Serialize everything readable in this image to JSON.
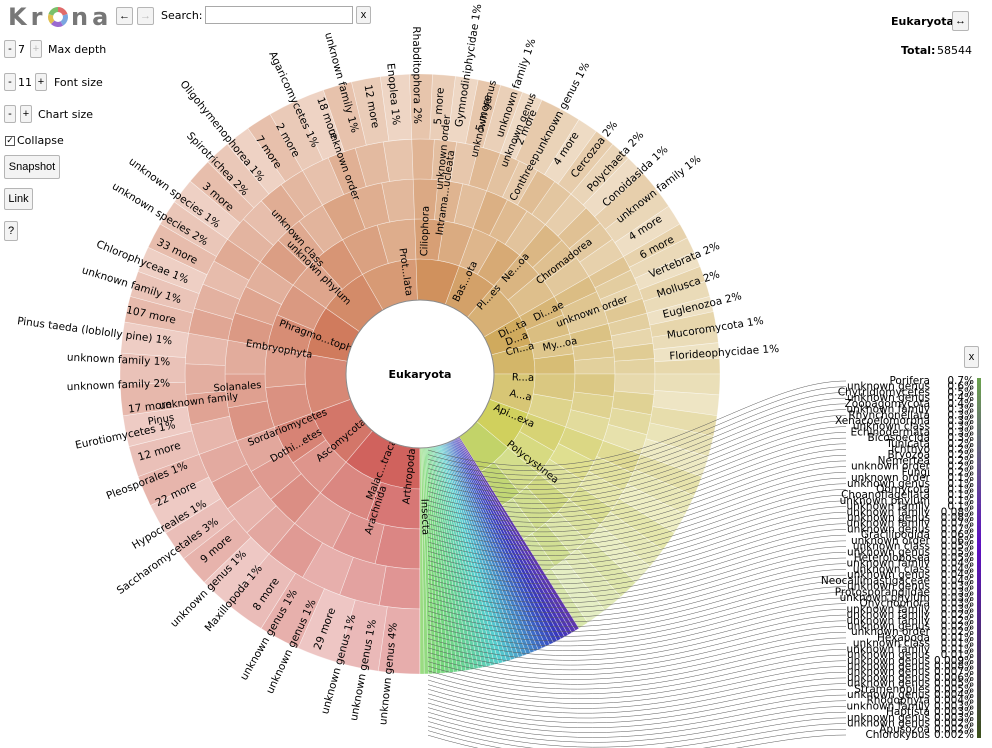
{
  "app": {
    "logo": "Krona"
  },
  "controls": {
    "back_label": "←",
    "forward_label": "→",
    "search_label": "Search:",
    "search_value": "",
    "clear_label": "x",
    "minus_label": "-",
    "plus_label": "+",
    "max_depth_value": "7",
    "max_depth_label": "Max depth",
    "font_size_value": "11",
    "font_size_label": "Font size",
    "chart_size_label": "Chart size",
    "collapse_label": "Collapse",
    "collapse_checked": true,
    "snapshot_label": "Snapshot",
    "link_label": "Link",
    "help_label": "?"
  },
  "details": {
    "name": "Eukaryota",
    "swap_label": "↔",
    "total_label": "Total:",
    "total_value": "58544",
    "close_label": "x"
  },
  "colors": {
    "root_fill": "#ffffff",
    "outline": "#8a8a8a",
    "accent_red": "#d66a6a",
    "accent_orange": "#d49a5e",
    "accent_yellow": "#cfc46a",
    "accent_green": "#8cc55a"
  },
  "chart": {
    "center_label": "Eukaryota",
    "inner_labels": [
      "Arthropoda",
      "Insecta",
      "Malac...traca",
      "Arachnida",
      "Ascomycota",
      "Dothi...etes",
      "Sordariomycetes",
      "Phragmo...tophyta",
      "Embryophyta",
      "Solanales",
      "unknown family",
      "Pinus",
      "unknown phylum",
      "unknown class",
      "unknown order",
      "Prot...lata",
      "Ciliophora",
      "Intrama...ucleata",
      "unknown order",
      "unknown genus",
      "unknown genus",
      "Conthreep",
      "Bas...ota",
      "Pl...es",
      "Ne...oa",
      "Chromadorea",
      "Di...ta",
      "D...a",
      "Cn...a",
      "My...oa",
      "Di...ae",
      "unknown order",
      "R...a",
      "A...a",
      "Api...exa",
      "Polycystinea"
    ],
    "outer_labels": [
      {
        "text": "unknown genus 4%"
      },
      {
        "text": "unknown genus 1%"
      },
      {
        "text": "unknown genus 1%"
      },
      {
        "text": "29 more"
      },
      {
        "text": "unknown genus 1%"
      },
      {
        "text": "unknown genus 1%"
      },
      {
        "text": "8 more"
      },
      {
        "text": "Maxillopoda 1%"
      },
      {
        "text": "unknown genus 1%"
      },
      {
        "text": "9 more"
      },
      {
        "text": "Saccharomycetales 3%"
      },
      {
        "text": "Hypocreales 1%"
      },
      {
        "text": "22 more"
      },
      {
        "text": "Pleosporales 1%"
      },
      {
        "text": "12 more"
      },
      {
        "text": "Eurotiomycetes 1%"
      },
      {
        "text": "17 more"
      },
      {
        "text": "unknown family 2%"
      },
      {
        "text": "unknown family 1%"
      },
      {
        "text": "Pinus taeda (loblolly pine) 1%"
      },
      {
        "text": "107 more"
      },
      {
        "text": "unknown family 1%"
      },
      {
        "text": "Chlorophyceae 1%"
      },
      {
        "text": "33 more"
      },
      {
        "text": "unknown species 2%"
      },
      {
        "text": "unknown species 1%"
      },
      {
        "text": "3 more"
      },
      {
        "text": "Spirotrichea 2%"
      },
      {
        "text": "Oligohymenophorea 1%"
      },
      {
        "text": "7 more"
      },
      {
        "text": "2 more"
      },
      {
        "text": "Agaricomycetes 1%"
      },
      {
        "text": "18 more"
      },
      {
        "text": "unknown family 1%"
      },
      {
        "text": "12 more"
      },
      {
        "text": "Enoplea 1%"
      },
      {
        "text": "Rhabditophora 2%"
      },
      {
        "text": "5 more"
      },
      {
        "text": "Gymnodiniphycidae 1%"
      },
      {
        "text": "5 more"
      },
      {
        "text": "unknown family 1%"
      },
      {
        "text": "2 more"
      },
      {
        "text": "unknown genus 1%"
      },
      {
        "text": "4 more"
      },
      {
        "text": "Cercozoa 2%"
      },
      {
        "text": "Polychaeta 2%"
      },
      {
        "text": "Conoidasida 1%"
      },
      {
        "text": "unknown family 1%"
      },
      {
        "text": "4 more"
      },
      {
        "text": "6 more"
      },
      {
        "text": "Vertebrata 2%"
      },
      {
        "text": "Mollusca 2%"
      },
      {
        "text": "Euglenozoa 2%"
      },
      {
        "text": "Mucoromycota 1%"
      },
      {
        "text": "Florideophycidae 1%"
      }
    ]
  },
  "legend": {
    "items": [
      {
        "name": "Porifera",
        "pct": "0.7%",
        "color": "#6a9f4f"
      },
      {
        "name": "unknown genus",
        "pct": "0.6%",
        "color": "#6a9a52"
      },
      {
        "name": "Chytridiomycetes",
        "pct": "0.5%",
        "color": "#6a9556"
      },
      {
        "name": "unknown genus",
        "pct": "0.4%",
        "color": "#6a905a"
      },
      {
        "name": "Zoopagomycota",
        "pct": "0.4%",
        "color": "#698b5e"
      },
      {
        "name": "unknown family",
        "pct": "0.3%",
        "color": "#698662"
      },
      {
        "name": "Rhynchonellata",
        "pct": "0.3%",
        "color": "#688166"
      },
      {
        "name": "Xenacoelomorpha",
        "pct": "0.3%",
        "color": "#687c6a"
      },
      {
        "name": "unknown class",
        "pct": "0.3%",
        "color": "#67776e"
      },
      {
        "name": "Echinodermata",
        "pct": "0.3%",
        "color": "#677272"
      },
      {
        "name": "Bicosoecida",
        "pct": "0.3%",
        "color": "#666d76"
      },
      {
        "name": "Tunicata",
        "pct": "0.2%",
        "color": "#66687a"
      },
      {
        "name": "Ichthyo",
        "pct": "0.2%",
        "color": "#65637e"
      },
      {
        "name": "Bryozoa",
        "pct": "0.2%",
        "color": "#655e82"
      },
      {
        "name": "Nemertea",
        "pct": "0.2%",
        "color": "#645986"
      },
      {
        "name": "unknown order",
        "pct": "0.2%",
        "color": "#64548a"
      },
      {
        "name": "Fungi",
        "pct": "0.2%",
        "color": "#634f8e"
      },
      {
        "name": "unknown order",
        "pct": "0.1%",
        "color": "#634a92"
      },
      {
        "name": "unknown genus",
        "pct": "0.1%",
        "color": "#624596"
      },
      {
        "name": "Oomycota",
        "pct": "0.1%",
        "color": "#62409a"
      },
      {
        "name": "Choanoflagellata",
        "pct": "0.1%",
        "color": "#613b9e"
      },
      {
        "name": "unknown phylum",
        "pct": "0.1%",
        "color": "#6136a2"
      },
      {
        "name": "unknown family",
        "pct": "0.1%",
        "color": "#6031a6"
      },
      {
        "name": "unknown family",
        "pct": "0.08%",
        "color": "#602caa"
      },
      {
        "name": "unknown genus",
        "pct": "0.08%",
        "color": "#5f27ae"
      },
      {
        "name": "unknown family",
        "pct": "0.07%",
        "color": "#5f22b2"
      },
      {
        "name": "unknown genus",
        "pct": "0.07%",
        "color": "#5e1db6"
      },
      {
        "name": "Gracilipodida",
        "pct": "0.06%",
        "color": "#5e18ba"
      },
      {
        "name": "unknown order",
        "pct": "0.06%",
        "color": "#5d13be"
      },
      {
        "name": "unknown class",
        "pct": "0.05%",
        "color": "#5d10c0"
      },
      {
        "name": "unknown genus",
        "pct": "0.05%",
        "color": "#5c10bd"
      },
      {
        "name": "Heterolobosea",
        "pct": "0.05%",
        "color": "#5b12b8"
      },
      {
        "name": "unknown family",
        "pct": "0.04%",
        "color": "#5a14b3"
      },
      {
        "name": "unknown class",
        "pct": "0.04%",
        "color": "#5916ae"
      },
      {
        "name": "unknown genus",
        "pct": "0.04%",
        "color": "#5818a9"
      },
      {
        "name": "Neocallimastigaceae",
        "pct": "0.04%",
        "color": "#571aa4"
      },
      {
        "name": "unknown genus",
        "pct": "0.03%",
        "color": "#561c9f"
      },
      {
        "name": "Protosporangiidae",
        "pct": "0.03%",
        "color": "#551e9a"
      },
      {
        "name": "unknown phylum",
        "pct": "0.03%",
        "color": "#542095"
      },
      {
        "name": "Onychophora",
        "pct": "0.03%",
        "color": "#532290"
      },
      {
        "name": "unknown family",
        "pct": "0.03%",
        "color": "#52248b"
      },
      {
        "name": "unknown family",
        "pct": "0.02%",
        "color": "#512686"
      },
      {
        "name": "unknown family",
        "pct": "0.02%",
        "color": "#502881"
      },
      {
        "name": "unknown genus",
        "pct": "0.02%",
        "color": "#4f2a7c"
      },
      {
        "name": "unknown order",
        "pct": "0.02%",
        "color": "#4e2c77"
      },
      {
        "name": "Hexapoda",
        "pct": "0.01%",
        "color": "#4d2e72"
      },
      {
        "name": "unknown class",
        "pct": "0.01%",
        "color": "#4c306d"
      },
      {
        "name": "unknown family",
        "pct": "0.01%",
        "color": "#4b3268"
      },
      {
        "name": "unknown genus",
        "pct": "0.01%",
        "color": "#4a3463"
      },
      {
        "name": "unknown genus",
        "pct": "0.009%",
        "color": "#49365e"
      },
      {
        "name": "unknown genus",
        "pct": "0.008%",
        "color": "#483859"
      },
      {
        "name": "unknown genus",
        "pct": "0.007%",
        "color": "#473a54"
      },
      {
        "name": "unknown genus",
        "pct": "0.006%",
        "color": "#463c4f"
      },
      {
        "name": "unknown genus",
        "pct": "0.005%",
        "color": "#453e4a"
      },
      {
        "name": "Stramenopiles",
        "pct": "0.005%",
        "color": "#444045"
      },
      {
        "name": "unknown genus",
        "pct": "0.004%",
        "color": "#434240"
      },
      {
        "name": "Rhodophyta",
        "pct": "0.004%",
        "color": "#42443b"
      },
      {
        "name": "unknown family",
        "pct": "0.003%",
        "color": "#414636"
      },
      {
        "name": "Haptista",
        "pct": "0.003%",
        "color": "#404831"
      },
      {
        "name": "unknown genus",
        "pct": "0.003%",
        "color": "#3f4a2c"
      },
      {
        "name": "unknown genus",
        "pct": "0.002%",
        "color": "#3e4c27"
      },
      {
        "name": "Apusozoa",
        "pct": "0.002%",
        "color": "#3d4e22"
      },
      {
        "name": "Chlorokybus",
        "pct": "0.002%",
        "color": "#3c501d"
      }
    ]
  }
}
